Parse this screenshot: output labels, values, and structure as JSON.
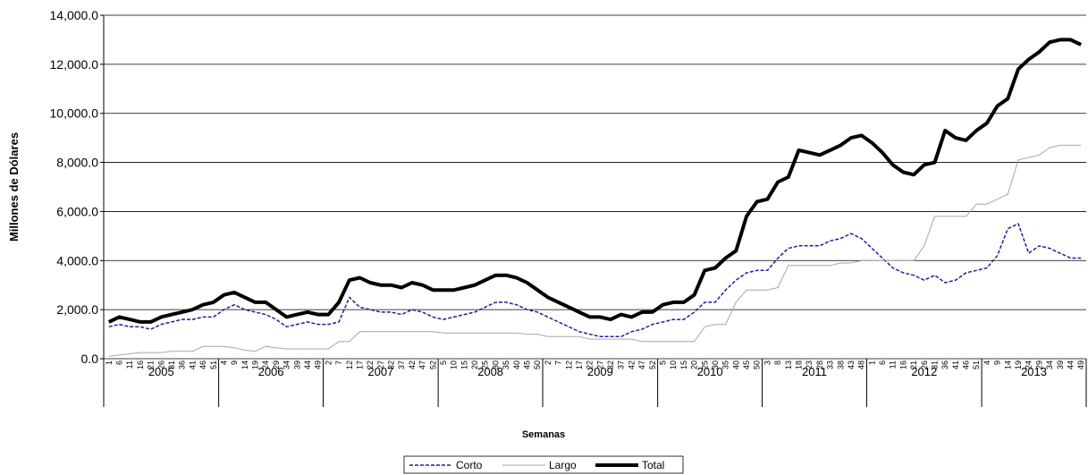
{
  "chart_data": {
    "type": "line",
    "y_label": "Millones de Dólares",
    "x_label": "Semanas",
    "ylim": [
      0,
      14000
    ],
    "yticks": [
      {
        "value": 0,
        "label": "0.0"
      },
      {
        "value": 2000,
        "label": "2,000.0"
      },
      {
        "value": 4000,
        "label": "4,000.0"
      },
      {
        "value": 6000,
        "label": "6,000.0"
      },
      {
        "value": 8000,
        "label": "8,000.0"
      },
      {
        "value": 10000,
        "label": "10,000.0"
      },
      {
        "value": 12000,
        "label": "12,000.0"
      },
      {
        "value": 14000,
        "label": "14,000.0"
      }
    ],
    "grid": true,
    "legend": "bottom",
    "groups": [
      {
        "label": "2005",
        "weeks": [
          1,
          6,
          11,
          16,
          21,
          26,
          31,
          36,
          41,
          46,
          51
        ]
      },
      {
        "label": "2006",
        "weeks": [
          4,
          9,
          14,
          19,
          24,
          29,
          34,
          39,
          44,
          49
        ]
      },
      {
        "label": "2007",
        "weeks": [
          2,
          7,
          12,
          17,
          22,
          27,
          32,
          37,
          42,
          47,
          52
        ]
      },
      {
        "label": "2008",
        "weeks": [
          5,
          10,
          15,
          20,
          25,
          30,
          35,
          40,
          45,
          50
        ]
      },
      {
        "label": "2009",
        "weeks": [
          2,
          7,
          12,
          17,
          22,
          27,
          32,
          37,
          42,
          47,
          52
        ]
      },
      {
        "label": "2010",
        "weeks": [
          5,
          10,
          15,
          20,
          25,
          30,
          35,
          40,
          45,
          50
        ]
      },
      {
        "label": "2011",
        "weeks": [
          3,
          8,
          13,
          18,
          23,
          28,
          33,
          38,
          43,
          48
        ]
      },
      {
        "label": "2012",
        "weeks": [
          1,
          6,
          11,
          16,
          21,
          26,
          31,
          36,
          41,
          46,
          51
        ]
      },
      {
        "label": "2013",
        "weeks": [
          4,
          9,
          14,
          19,
          24,
          29,
          34,
          39,
          44,
          49
        ]
      }
    ],
    "series": [
      {
        "name": "Corto",
        "color": "#1f1f9c",
        "line_style": "dashed",
        "width": 1.5,
        "values": [
          1300,
          1400,
          1300,
          1300,
          1200,
          1400,
          1500,
          1600,
          1600,
          1700,
          1700,
          2000,
          2200,
          2000,
          1900,
          1800,
          1600,
          1300,
          1400,
          1500,
          1400,
          1400,
          1500,
          2500,
          2100,
          2000,
          1900,
          1900,
          1800,
          2000,
          1900,
          1700,
          1600,
          1700,
          1800,
          1900,
          2100,
          2300,
          2300,
          2200,
          2000,
          1900,
          1700,
          1500,
          1300,
          1100,
          1000,
          900,
          900,
          900,
          1100,
          1200,
          1400,
          1500,
          1600,
          1600,
          1900,
          2300,
          2300,
          2800,
          3200,
          3500,
          3600,
          3600,
          4100,
          4500,
          4600,
          4600,
          4600,
          4800,
          4900,
          5100,
          4900,
          4500,
          4100,
          3700,
          3500,
          3400,
          3200,
          3400,
          3100,
          3200,
          3500,
          3600,
          3700,
          4200,
          5300,
          5500,
          4300,
          4600,
          4500,
          4300,
          4100,
          4100
        ]
      },
      {
        "name": "Largo",
        "color": "#a6a6a6",
        "line_style": "solid",
        "width": 1,
        "values": [
          100,
          150,
          200,
          250,
          250,
          250,
          300,
          300,
          300,
          500,
          500,
          500,
          450,
          350,
          300,
          500,
          450,
          400,
          400,
          400,
          400,
          400,
          700,
          700,
          1100,
          1100,
          1100,
          1100,
          1100,
          1100,
          1100,
          1100,
          1050,
          1050,
          1050,
          1050,
          1050,
          1050,
          1050,
          1050,
          1000,
          1000,
          900,
          900,
          900,
          900,
          800,
          800,
          800,
          800,
          800,
          700,
          700,
          700,
          700,
          700,
          700,
          1300,
          1400,
          1400,
          2300,
          2800,
          2800,
          2800,
          2900,
          3800,
          3800,
          3800,
          3800,
          3800,
          3900,
          3900,
          4000,
          4000,
          4000,
          4000,
          4000,
          4000,
          4600,
          5800,
          5800,
          5800,
          5800,
          6300,
          6300,
          6500,
          6700,
          8100,
          8200,
          8300,
          8600,
          8700,
          8700,
          8700
        ]
      },
      {
        "name": "Total",
        "color": "#000000",
        "line_style": "solid",
        "width": 4,
        "values": [
          1500,
          1700,
          1600,
          1500,
          1500,
          1700,
          1800,
          1900,
          2000,
          2200,
          2300,
          2600,
          2700,
          2500,
          2300,
          2300,
          2000,
          1700,
          1800,
          1900,
          1800,
          1800,
          2300,
          3200,
          3300,
          3100,
          3000,
          3000,
          2900,
          3100,
          3000,
          2800,
          2800,
          2800,
          2900,
          3000,
          3200,
          3400,
          3400,
          3300,
          3100,
          2800,
          2500,
          2300,
          2100,
          1900,
          1700,
          1700,
          1600,
          1800,
          1700,
          1900,
          1900,
          2200,
          2300,
          2300,
          2600,
          3600,
          3700,
          4100,
          4400,
          5800,
          6400,
          6500,
          7200,
          7400,
          8500,
          8400,
          8300,
          8500,
          8700,
          9000,
          9100,
          8800,
          8400,
          7900,
          7600,
          7500,
          7900,
          8000,
          9300,
          9000,
          8900,
          9300,
          9600,
          10300,
          10600,
          11800,
          12200,
          12500,
          12900,
          13000,
          13000,
          12800
        ]
      }
    ]
  }
}
